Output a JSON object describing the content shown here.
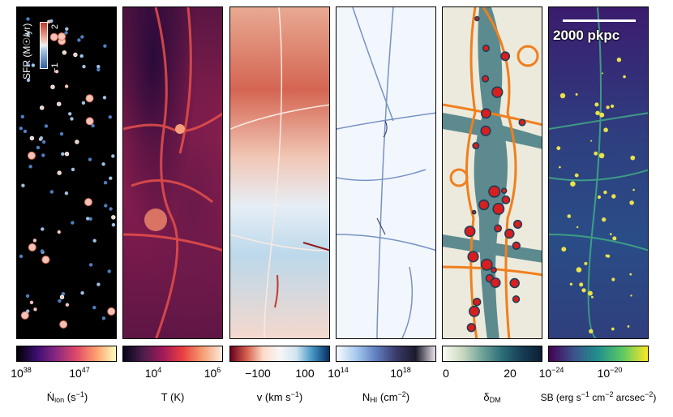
{
  "panels": [
    {
      "name": "ionizing-rate",
      "colorbar": {
        "gradient": [
          "#000004",
          "#3b0f70",
          "#8c2981",
          "#de4968",
          "#fe9f6d",
          "#fcfdbf"
        ]
      },
      "ticks": [
        {
          "base": "10",
          "exp": "38"
        },
        {
          "base": "10",
          "exp": "47"
        }
      ],
      "label": {
        "main": "Ṅ",
        "sub": "ion",
        "rest": " (s",
        "sup": "−1",
        "end": ")"
      }
    },
    {
      "name": "temperature",
      "colorbar": {
        "gradient": [
          "#03051a",
          "#4c1d4b",
          "#a11a5b",
          "#e83f3f",
          "#f69c73",
          "#faebdd"
        ]
      },
      "ticks": [
        {
          "base": "10",
          "exp": "4"
        },
        {
          "base": "10",
          "exp": "6"
        }
      ],
      "label": {
        "text": "T (K)"
      }
    },
    {
      "name": "velocity",
      "colorbar": {
        "gradient": [
          "#67001f",
          "#d6604d",
          "#fddbc7",
          "#f7f7f7",
          "#d1e5f0",
          "#4393c3",
          "#053061"
        ]
      },
      "ticks": [
        {
          "text": "−100"
        },
        {
          "text": "0"
        },
        {
          "text": "100"
        }
      ],
      "label": {
        "main": "v (km s",
        "sup": "−1",
        "end": ")"
      }
    },
    {
      "name": "hi-column-density",
      "colorbar": {
        "gradient": [
          "#f7fbff",
          "#a7c9ee",
          "#5f7fbf",
          "#3b3b6b",
          "#1a1a2a",
          "#e8e0ea"
        ]
      },
      "ticks": [
        {
          "base": "10",
          "exp": "14"
        },
        {
          "base": "10",
          "exp": "18"
        }
      ],
      "label": {
        "main": "N",
        "sub": "HI",
        "rest": " (cm",
        "sup": "−2",
        "end": ")"
      }
    },
    {
      "name": "dm-overdensity",
      "colorbar": {
        "gradient": [
          "#fbfbf3",
          "#c9d8c1",
          "#6fa399",
          "#2b6d78",
          "#163d55",
          "#0c1f33"
        ]
      },
      "ticks": [
        {
          "text": "0"
        },
        {
          "text": "20"
        }
      ],
      "label": {
        "main": "δ",
        "sub": "DM"
      }
    },
    {
      "name": "surface-brightness",
      "colorbar": {
        "gradient": [
          "#440154",
          "#3b528b",
          "#21918c",
          "#5ec962",
          "#fde725"
        ]
      },
      "ticks": [
        {
          "base": "10",
          "exp": "−24"
        },
        {
          "base": "10",
          "exp": "−20"
        }
      ],
      "label": {
        "main": "SB (erg s",
        "sup": "−1",
        "mid": " cm",
        "sup2": "−2",
        "mid2": " arcsec",
        "sup3": "−2",
        "end": ")"
      }
    }
  ],
  "sfr_legend": {
    "label": "SFR (M☉/yr)",
    "top": "2",
    "bottom": "−1"
  },
  "scale": {
    "text": "2000 pkpc"
  }
}
